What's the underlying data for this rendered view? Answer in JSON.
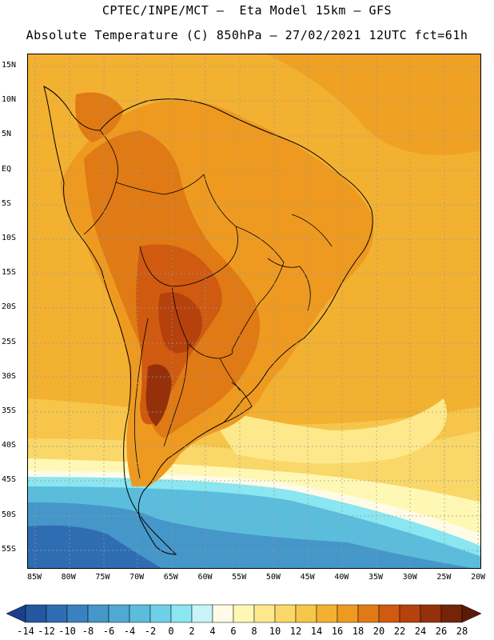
{
  "header": {
    "line1": "CPTEC/INPE/MCT –  Eta Model 15km – GFS",
    "line2": "Absolute Temperature (C) 850hPa – 27/02/2021 12UTC fct=61h"
  },
  "map": {
    "lat_labels": [
      "15N",
      "10N",
      "5N",
      "EQ",
      "5S",
      "10S",
      "15S",
      "20S",
      "25S",
      "30S",
      "35S",
      "40S",
      "45S",
      "50S",
      "55S"
    ],
    "lon_labels": [
      "85W",
      "80W",
      "75W",
      "70W",
      "65W",
      "60W",
      "55W",
      "50W",
      "45W",
      "40W",
      "35W",
      "30W",
      "25W",
      "20W"
    ]
  },
  "colorbar": {
    "labels": [
      "-14",
      "-12",
      "-10",
      "-8",
      "-6",
      "-4",
      "-2",
      "0",
      "2",
      "4",
      "6",
      "8",
      "10",
      "12",
      "14",
      "16",
      "18",
      "20",
      "22",
      "24",
      "26",
      "28"
    ],
    "colors": [
      "#1b3f8c",
      "#2457a0",
      "#2f6db3",
      "#3a82bf",
      "#4596c9",
      "#4fa9d3",
      "#5bbcdc",
      "#6dd0e6",
      "#8ae6f0",
      "#c6f4f8",
      "#fffbe6",
      "#fff8b4",
      "#fde98c",
      "#f9d768",
      "#f6c54a",
      "#f2b130",
      "#ee9a20",
      "#e07a14",
      "#cf5a10",
      "#b5410d",
      "#94310a",
      "#732409",
      "#5a1a08"
    ]
  }
}
